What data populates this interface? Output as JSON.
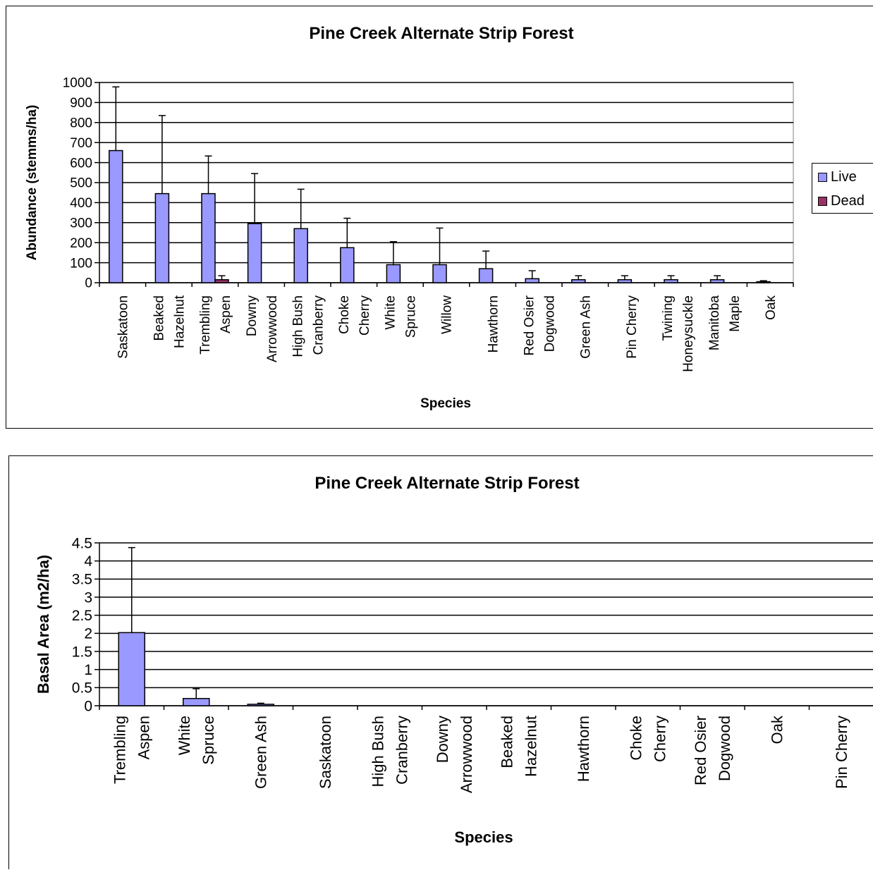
{
  "chart_data": [
    {
      "type": "bar",
      "title": "Pine Creek Alternate Strip Forest",
      "xlabel": "Species",
      "ylabel": "Abundance (stemms/ha)",
      "ylim": [
        0,
        1000
      ],
      "yticks": [
        0,
        100,
        200,
        300,
        400,
        500,
        600,
        700,
        800,
        900,
        1000
      ],
      "grid": true,
      "legend_position": "right",
      "categories": [
        [
          "Saskatoon"
        ],
        [
          "Beaked",
          "Hazelnut"
        ],
        [
          "Trembling",
          "Aspen"
        ],
        [
          "Downy",
          "Arrowwood"
        ],
        [
          "High Bush",
          "Cranberry"
        ],
        [
          "Choke",
          "Cherry"
        ],
        [
          "White",
          "Spruce"
        ],
        [
          "Willow"
        ],
        [
          "Hawthorn"
        ],
        [
          "Red Osier",
          "Dogwood"
        ],
        [
          "Green Ash"
        ],
        [
          "Pin Cherry"
        ],
        [
          "Twining",
          "Honeysuckle"
        ],
        [
          "Manitoba",
          "Maple"
        ],
        [
          "Oak"
        ]
      ],
      "series": [
        {
          "name": "Live",
          "color": "#9999ff",
          "values": [
            660,
            445,
            445,
            295,
            270,
            175,
            90,
            90,
            70,
            20,
            15,
            15,
            15,
            15,
            5
          ],
          "error_upper": [
            978,
            835,
            633,
            545,
            467,
            322,
            205,
            273,
            158,
            60,
            35,
            35,
            35,
            35,
            10
          ]
        },
        {
          "name": "Dead",
          "color": "#993366",
          "values": [
            0,
            0,
            15,
            0,
            0,
            0,
            0,
            0,
            0,
            0,
            0,
            0,
            0,
            0,
            0
          ],
          "error_upper": [
            0,
            0,
            35,
            0,
            0,
            0,
            0,
            0,
            0,
            0,
            0,
            0,
            0,
            0,
            0
          ]
        }
      ]
    },
    {
      "type": "bar",
      "title": "Pine Creek Alternate Strip Forest",
      "xlabel": "Species",
      "ylabel": "Basal Area (m2/ha)",
      "ylim": [
        0,
        4.5
      ],
      "yticks": [
        "0",
        "0.5",
        "1",
        "1.5",
        "2",
        "2.5",
        "3",
        "3.5",
        "4",
        "4.5"
      ],
      "grid": true,
      "categories": [
        [
          "Trembling",
          "Aspen"
        ],
        [
          "White",
          "Spruce"
        ],
        [
          "Green Ash"
        ],
        [
          "Saskatoon"
        ],
        [
          "High Bush",
          "Cranberry"
        ],
        [
          "Downy",
          "Arrowwood"
        ],
        [
          "Beaked",
          "Hazelnut"
        ],
        [
          "Hawthorn"
        ],
        [
          "Choke",
          "Cherry"
        ],
        [
          "Red Osier",
          "Dogwood"
        ],
        [
          "Oak"
        ],
        [
          "Pin Cherry"
        ]
      ],
      "series": [
        {
          "color": "#9999ff",
          "values": [
            2.02,
            0.2,
            0.04,
            0,
            0,
            0,
            0,
            0,
            0,
            0,
            0,
            0
          ],
          "error_upper": [
            4.37,
            0.47,
            0.07,
            0,
            0,
            0,
            0,
            0,
            0,
            0,
            0,
            0
          ]
        }
      ]
    }
  ]
}
